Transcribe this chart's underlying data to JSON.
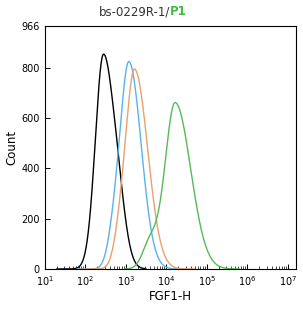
{
  "title_black": "bs-0229R-1/",
  "title_green": "P1",
  "xlabel": "FGF1-H",
  "ylabel": "Count",
  "xmin": 1,
  "xmax": 7.2,
  "ymin": 0,
  "ymax": 966,
  "yticks": [
    0,
    200,
    400,
    600,
    800,
    966
  ],
  "curves": [
    {
      "color": "black",
      "segments": [
        {
          "peak_x_log": 2.45,
          "peak_y": 850,
          "sigma_l": 0.2,
          "sigma_r": 0.28
        },
        {
          "peak_x_log": 2.85,
          "peak_y": 100,
          "sigma_l": 0.15,
          "sigma_r": 0.18
        }
      ],
      "x_start_log": 1.3,
      "x_end_log": 3.5
    },
    {
      "color": "#56b4e9",
      "segments": [
        {
          "peak_x_log": 3.08,
          "peak_y": 820,
          "sigma_l": 0.22,
          "sigma_r": 0.3
        },
        {
          "peak_x_log": 2.7,
          "peak_y": 95,
          "sigma_l": 0.15,
          "sigma_r": 0.15
        }
      ],
      "x_start_log": 1.8,
      "x_end_log": 4.5
    },
    {
      "color": "#e8a070",
      "segments": [
        {
          "peak_x_log": 3.22,
          "peak_y": 790,
          "sigma_l": 0.22,
          "sigma_r": 0.32
        },
        {
          "peak_x_log": 2.85,
          "peak_y": 85,
          "sigma_l": 0.15,
          "sigma_r": 0.15
        }
      ],
      "x_start_log": 1.9,
      "x_end_log": 4.7
    },
    {
      "color": "#55bb55",
      "segments": [
        {
          "peak_x_log": 4.22,
          "peak_y": 660,
          "sigma_l": 0.25,
          "sigma_r": 0.38
        },
        {
          "peak_x_log": 3.6,
          "peak_y": 105,
          "sigma_l": 0.18,
          "sigma_r": 0.2
        }
      ],
      "x_start_log": 3.0,
      "x_end_log": 5.8
    }
  ],
  "figsize": [
    3.03,
    3.09
  ],
  "dpi": 100
}
